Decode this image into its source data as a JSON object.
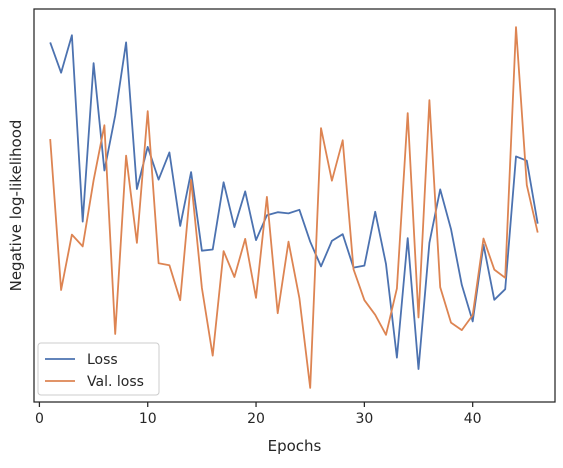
{
  "chart_data": {
    "type": "line",
    "title": "",
    "xlabel": "Epochs",
    "ylabel": "Negative log-likelihood",
    "xlim": [
      -0.5,
      47.6
    ],
    "ylim": [
      0,
      1
    ],
    "x_ticks": [
      0,
      10,
      20,
      30,
      40
    ],
    "y_ticks_visible": false,
    "grid": false,
    "legend_position": "lower-left",
    "series": [
      {
        "name": "Loss",
        "color": "#4c72b0",
        "x": [
          1,
          2,
          3,
          4,
          5,
          6,
          7,
          8,
          9,
          10,
          11,
          12,
          13,
          14,
          15,
          16,
          17,
          18,
          19,
          20,
          21,
          22,
          23,
          24,
          25,
          26,
          27,
          28,
          29,
          30,
          31,
          32,
          33,
          34,
          35,
          36,
          37,
          38,
          39,
          40,
          41,
          42,
          43,
          44,
          45,
          46
        ],
        "values": [
          0.915,
          0.838,
          0.933,
          0.459,
          0.862,
          0.589,
          0.729,
          0.915,
          0.542,
          0.649,
          0.566,
          0.635,
          0.448,
          0.585,
          0.385,
          0.388,
          0.559,
          0.445,
          0.536,
          0.412,
          0.475,
          0.483,
          0.48,
          0.489,
          0.408,
          0.345,
          0.41,
          0.427,
          0.342,
          0.347,
          0.484,
          0.351,
          0.113,
          0.417,
          0.084,
          0.405,
          0.541,
          0.44,
          0.298,
          0.205,
          0.4,
          0.26,
          0.287,
          0.625,
          0.614,
          0.454
        ]
      },
      {
        "name": "Val. loss",
        "color": "#dd8452",
        "x": [
          1,
          2,
          3,
          4,
          5,
          6,
          7,
          8,
          9,
          10,
          11,
          12,
          13,
          14,
          15,
          16,
          17,
          18,
          19,
          20,
          21,
          22,
          23,
          24,
          25,
          26,
          27,
          28,
          29,
          30,
          31,
          32,
          33,
          34,
          35,
          36,
          37,
          38,
          39,
          40,
          41,
          42,
          43,
          44,
          45,
          46
        ],
        "values": [
          0.669,
          0.285,
          0.426,
          0.396,
          0.564,
          0.704,
          0.173,
          0.627,
          0.405,
          0.74,
          0.353,
          0.348,
          0.259,
          0.565,
          0.29,
          0.118,
          0.384,
          0.318,
          0.415,
          0.265,
          0.522,
          0.226,
          0.408,
          0.264,
          0.036,
          0.697,
          0.563,
          0.666,
          0.338,
          0.259,
          0.222,
          0.171,
          0.289,
          0.735,
          0.215,
          0.768,
          0.292,
          0.202,
          0.183,
          0.221,
          0.416,
          0.337,
          0.316,
          0.954,
          0.552,
          0.431
        ]
      }
    ]
  }
}
